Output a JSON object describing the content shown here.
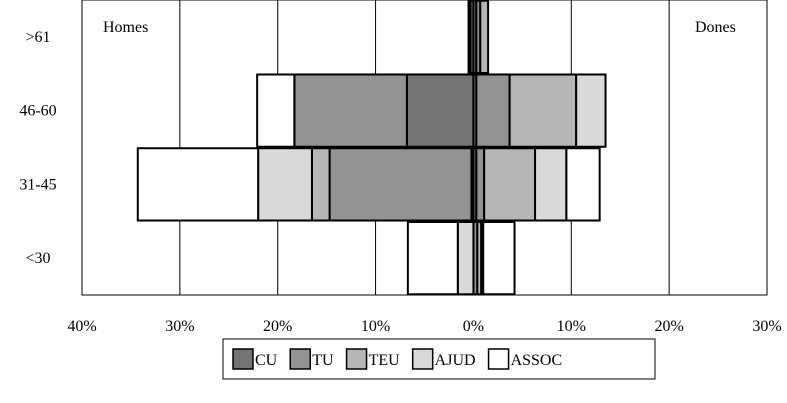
{
  "chart_data": {
    "type": "bar",
    "subtype": "population-pyramid (stacked horizontal bars, diverging)",
    "categories": [
      ">61",
      "46-60",
      "31-45",
      "<30"
    ],
    "left_label": "Homes",
    "right_label": "Dones",
    "x_ticks": [
      "40%",
      "30%",
      "20%",
      "10%",
      "0%",
      "10%",
      "20%",
      "30%"
    ],
    "xlim": [
      -40,
      30
    ],
    "grid": true,
    "legend_position": "bottom",
    "series": [
      {
        "name": "CU",
        "color": "#747474",
        "left": [
          0.3,
          6.8,
          0.2,
          0.0
        ],
        "right": [
          0.3,
          0.3,
          0.3,
          0.0
        ]
      },
      {
        "name": "TU",
        "color": "#939393",
        "left": [
          0.2,
          11.5,
          14.5,
          0.0
        ],
        "right": [
          0.4,
          3.4,
          0.8,
          0.4
        ]
      },
      {
        "name": "TEU",
        "color": "#b6b6b6",
        "left": [
          0.0,
          0.0,
          1.8,
          0.0
        ],
        "right": [
          0.8,
          6.8,
          5.2,
          0.4
        ]
      },
      {
        "name": "AJUD",
        "color": "#d9d9d9",
        "left": [
          0.0,
          0.0,
          5.5,
          1.6
        ],
        "right": [
          0.0,
          3.0,
          3.2,
          0.2
        ]
      },
      {
        "name": "ASSOC",
        "color": "#ffffff",
        "left": [
          0.0,
          3.8,
          12.3,
          5.1
        ],
        "right": [
          0.0,
          0.0,
          3.4,
          3.2
        ]
      }
    ]
  }
}
